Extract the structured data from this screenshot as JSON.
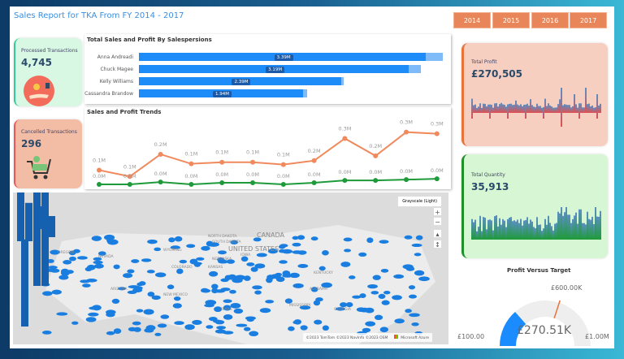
{
  "header": {
    "title": "Sales Report for TKA From FY 2014 - 2017",
    "years": [
      "2014",
      "2015",
      "2016",
      "2017"
    ]
  },
  "kpis": {
    "processed": {
      "label": "Processed Transactions",
      "value": "4,745",
      "icon": "hand-coin-icon",
      "color": "#d8f8e4"
    },
    "cancelled": {
      "label": "Cancelled Transactions",
      "value": "296",
      "icon": "shopping-cart-icon",
      "color": "#f3bda5"
    },
    "profit": {
      "label": "Total Profit",
      "value": "£270,505",
      "color": "#f7cfc0",
      "accent": "#e8733a"
    },
    "quantity": {
      "label": "Total Quantity",
      "value": "35,913",
      "color": "#d6f6d4",
      "accent": "#1f8f2a"
    }
  },
  "salespersons": {
    "title": "Total Sales and Profit By Salespersions",
    "rows": [
      {
        "name": "Anna Andreadi",
        "value": 3.39,
        "label": "3.39M",
        "total": 3.59
      },
      {
        "name": "Chuck Magee",
        "value": 3.19,
        "label": "3.19M",
        "total": 3.33
      },
      {
        "name": "Kelly Williams",
        "value": 2.39,
        "label": "2.39M",
        "total": 2.42
      },
      {
        "name": "Cassandra Brandow",
        "value": 1.94,
        "label": "1.94M",
        "total": 1.99
      }
    ]
  },
  "chart_data": {
    "type": "line",
    "title": "Sales and Profit Trends",
    "grid": false,
    "series": [
      {
        "color": "#f08a5d",
        "values": [
          0.09,
          0.05,
          0.19,
          0.13,
          0.14,
          0.14,
          0.125,
          0.15,
          0.29,
          0.18,
          0.33,
          0.32
        ],
        "labels": [
          "0.1M",
          "0.1M",
          "0.2M",
          "0.1M",
          "0.1M",
          "0.1M",
          "0.1M",
          "0.2M",
          "0.3M",
          "0.2M",
          "0.3M",
          "0.3M"
        ]
      },
      {
        "color": "#1f9a3a",
        "values": [
          0.0,
          0.0,
          0.015,
          0.0,
          0.01,
          0.01,
          0.0,
          0.01,
          0.025,
          0.025,
          0.03,
          0.035
        ],
        "labels": [
          "0.0M",
          "0.0M",
          "0.0M",
          "0.0M",
          "0.0M",
          "0.0M",
          "0.0M",
          "0.0M",
          "0.0M",
          "0.0M",
          "0.0M",
          "0.0M"
        ]
      }
    ]
  },
  "map": {
    "style_button": "Grayscale (Light)",
    "attribution": "©2023 TomTom ©2023 NavInfo ©2023 OSM",
    "brand": "Microsoft Azure",
    "labels": [
      "CANADA",
      "UNITED STATES",
      "OREGON",
      "NEVADA",
      "ARIZONA",
      "NEW MEXICO",
      "TEXAS",
      "KANSAS",
      "NEBRASKA",
      "COLORADO",
      "IOWA",
      "GEORGIA",
      "ALABAMA",
      "MISSISSIPPI",
      "KENTUCKY",
      "WYOMING",
      "SOUTH DAKOTA",
      "NORTH DAKOTA"
    ]
  },
  "gauge": {
    "title": "Profit Versus Target",
    "value": "£270.51K",
    "min": "£100.00",
    "max": "£1.00M",
    "target": "£600.00K",
    "fraction": 0.27,
    "target_fraction": 0.6
  }
}
